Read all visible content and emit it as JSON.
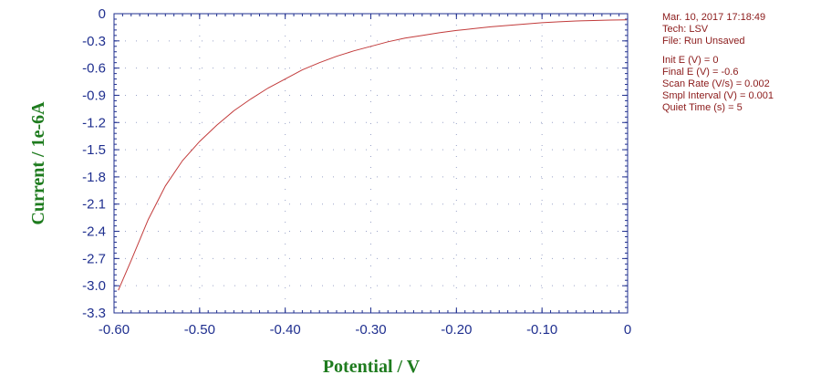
{
  "chart_data": {
    "type": "line",
    "xlabel": "Potential / V",
    "ylabel": "Current / 1e-6A",
    "xlim": [
      -0.6,
      0
    ],
    "ylim": [
      -3.3,
      0
    ],
    "x_ticks": [
      "-0.60",
      "-0.50",
      "-0.40",
      "-0.30",
      "-0.20",
      "-0.10",
      "0"
    ],
    "y_ticks": [
      "0",
      "-0.3",
      "-0.6",
      "-0.9",
      "-1.2",
      "-1.5",
      "-1.8",
      "-2.1",
      "-2.4",
      "-2.7",
      "-3.0",
      "-3.3"
    ],
    "grid": "dotted",
    "series": [
      {
        "color": "#c23b3b",
        "x": [
          -0.595,
          -0.58,
          -0.56,
          -0.54,
          -0.52,
          -0.5,
          -0.48,
          -0.46,
          -0.44,
          -0.42,
          -0.4,
          -0.38,
          -0.36,
          -0.34,
          -0.32,
          -0.3,
          -0.28,
          -0.26,
          -0.24,
          -0.22,
          -0.2,
          -0.18,
          -0.16,
          -0.14,
          -0.12,
          -0.1,
          -0.08,
          -0.06,
          -0.04,
          -0.02,
          -0.001
        ],
        "y": [
          -3.05,
          -2.72,
          -2.27,
          -1.9,
          -1.62,
          -1.41,
          -1.23,
          -1.07,
          -0.94,
          -0.82,
          -0.72,
          -0.62,
          -0.54,
          -0.47,
          -0.41,
          -0.36,
          -0.31,
          -0.27,
          -0.24,
          -0.21,
          -0.185,
          -0.165,
          -0.145,
          -0.13,
          -0.115,
          -0.1,
          -0.09,
          -0.08,
          -0.075,
          -0.07,
          -0.068
        ]
      }
    ]
  },
  "info": {
    "datetime": "Mar. 10, 2017    17:18:49",
    "tech": "Tech: LSV",
    "file": "File: Run Unsaved",
    "init_e": "Init E (V) = 0",
    "final_e": "Final E (V) = -0.6",
    "scan_rate": "Scan Rate (V/s) = 0.002",
    "smpl_interval": "Smpl Interval (V) = 0.001",
    "quiet_time": "Quiet Time (s) = 5"
  },
  "colors": {
    "axis": "#1f2f8f",
    "label": "#1e7b1e",
    "info_text": "#8b1a1a",
    "grid": "#9aa3c8"
  }
}
